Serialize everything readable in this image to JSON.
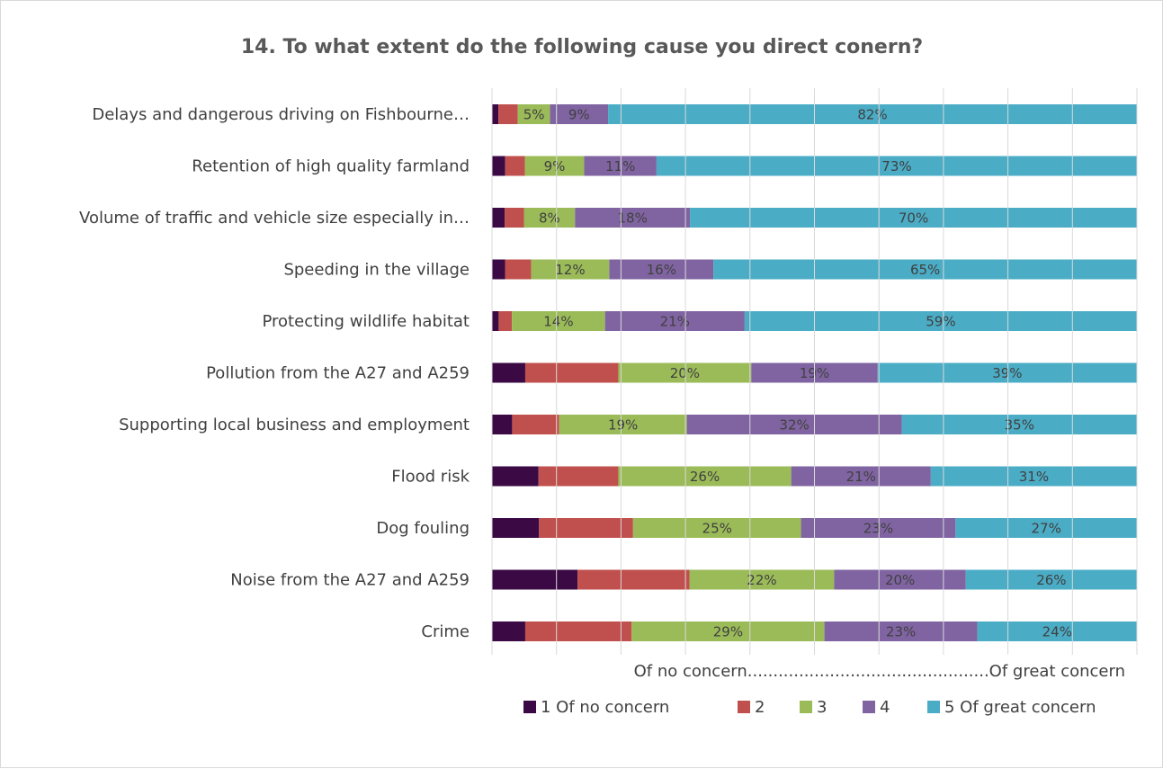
{
  "chart_data": {
    "type": "bar",
    "orientation": "horizontal",
    "stacked": "percent",
    "title": "14. To what extent do the following cause you direct conern?",
    "xlabel": "Of no concern...............................................Of great concern",
    "ylabel": "",
    "xlim": [
      0,
      100
    ],
    "grid": false,
    "legend_position": "bottom",
    "categories": [
      "Delays and dangerous driving on Fishbourne…",
      "Retention of high quality farmland",
      "Volume of traffic and vehicle size especially in…",
      "Speeding in the village",
      "Protecting wildlife habitat",
      "Pollution from the A27 and A259",
      "Supporting local business and employment",
      "Flood risk",
      "Dog fouling",
      "Noise from the A27 and A259",
      "Crime"
    ],
    "series": [
      {
        "name": "1 Of no concern",
        "color": "#3b0a45",
        "values": [
          1,
          2,
          2,
          2,
          1,
          5,
          3,
          7,
          7,
          13,
          5
        ],
        "labels": [
          "",
          "",
          "",
          "",
          "",
          "",
          "",
          "",
          "",
          "",
          ""
        ]
      },
      {
        "name": "2",
        "color": "#c0504d",
        "values": [
          3,
          3,
          3,
          4,
          2,
          14,
          7,
          12,
          14,
          17,
          16
        ],
        "labels": [
          "",
          "",
          "",
          "",
          "",
          "",
          "",
          "",
          "",
          "",
          ""
        ]
      },
      {
        "name": "3",
        "color": "#9bbb59",
        "values": [
          5,
          9,
          8,
          12,
          14,
          20,
          19,
          26,
          25,
          22,
          29
        ],
        "labels": [
          "5%",
          "9%",
          "8%",
          "12%",
          "14%",
          "20%",
          "19%",
          "26%",
          "25%",
          "22%",
          "29%"
        ]
      },
      {
        "name": "4",
        "color": "#8064a2",
        "values": [
          9,
          11,
          18,
          16,
          21,
          19,
          32,
          21,
          23,
          20,
          23
        ],
        "labels": [
          "9%",
          "11%",
          "18%",
          "16%",
          "21%",
          "19%",
          "32%",
          "21%",
          "23%",
          "20%",
          "23%"
        ]
      },
      {
        "name": "5 Of great concern",
        "color": "#4bacc6",
        "values": [
          82,
          73,
          70,
          65,
          59,
          39,
          35,
          31,
          27,
          26,
          24
        ],
        "labels": [
          "82%",
          "73%",
          "70%",
          "65%",
          "59%",
          "39%",
          "35%",
          "31%",
          "27%",
          "26%",
          "24%"
        ]
      }
    ]
  }
}
